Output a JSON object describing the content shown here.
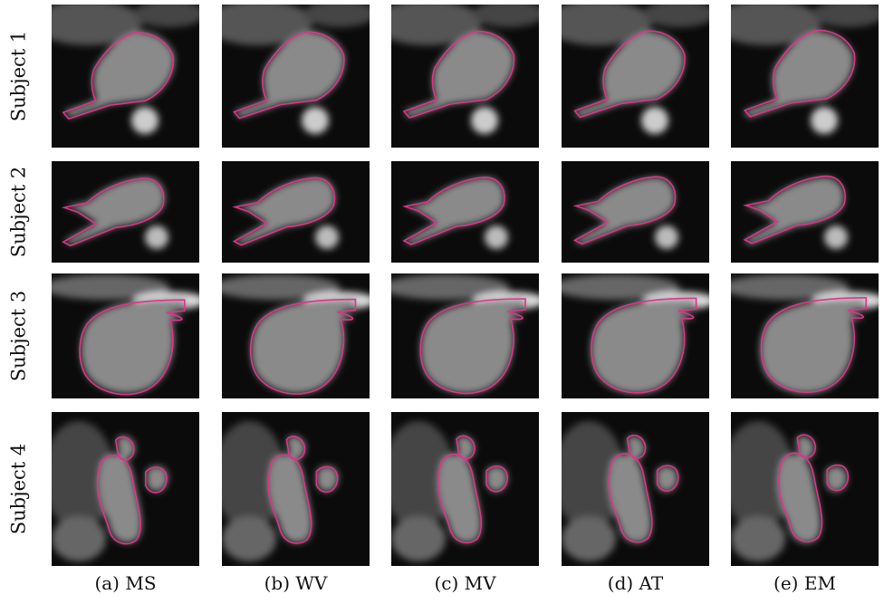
{
  "figure": {
    "rows": [
      "Subject 1",
      "Subject 2",
      "Subject 3",
      "Subject 4"
    ],
    "columns": [
      "(a) MS",
      "(b) WV",
      "(c) MV",
      "(d) AT",
      "(e) EM"
    ],
    "contour_color": "#e0338a"
  }
}
